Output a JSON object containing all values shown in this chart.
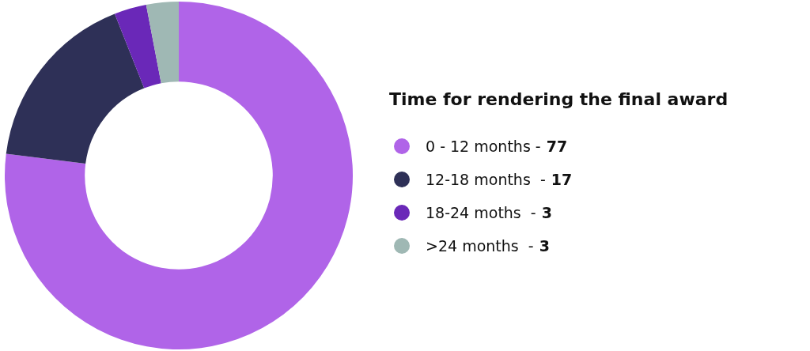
{
  "chart_data": {
    "type": "donut",
    "legend_title": "Time for rendering the final award",
    "categories": [
      "0 - 12 months -",
      "12-18 months  -",
      "18-24 moths  -",
      ">24 months  -"
    ],
    "values": [
      77,
      17,
      3,
      3
    ],
    "data_labels": true,
    "colors": [
      "#b064e8",
      "#2e3057",
      "#6a28b8",
      "#9fb8b4"
    ],
    "legend": "right"
  }
}
